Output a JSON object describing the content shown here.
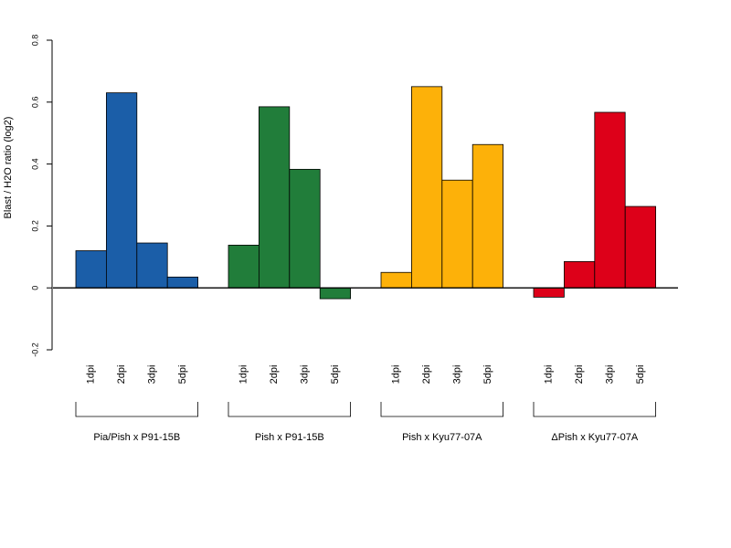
{
  "chart_data": {
    "type": "bar",
    "ylabel": "Blast / H2O ratio (log2)",
    "ylim": [
      -0.2,
      0.8
    ],
    "yticks": [
      "-0.2",
      "0",
      "0.2",
      "0.4",
      "0.6",
      "0.8"
    ],
    "ytick_values": [
      -0.2,
      0,
      0.2,
      0.4,
      0.6,
      0.8
    ],
    "categories": [
      "1dpi",
      "2dpi",
      "3dpi",
      "5dpi"
    ],
    "groups": [
      {
        "name": "Pia/Pish x P91-15B",
        "color": "#1b5ea8",
        "values": [
          0.12,
          0.63,
          0.145,
          0.035
        ]
      },
      {
        "name": "Pish x P91-15B",
        "color": "#217d3a",
        "values": [
          0.138,
          0.585,
          0.383,
          -0.035
        ]
      },
      {
        "name": "Pish x Kyu77-07A",
        "color": "#fdb109",
        "values": [
          0.05,
          0.65,
          0.348,
          0.463
        ]
      },
      {
        "name": "ΔPish x Kyu77-07A",
        "color": "#dd0019",
        "values": [
          -0.03,
          0.085,
          0.567,
          0.263
        ]
      }
    ]
  }
}
